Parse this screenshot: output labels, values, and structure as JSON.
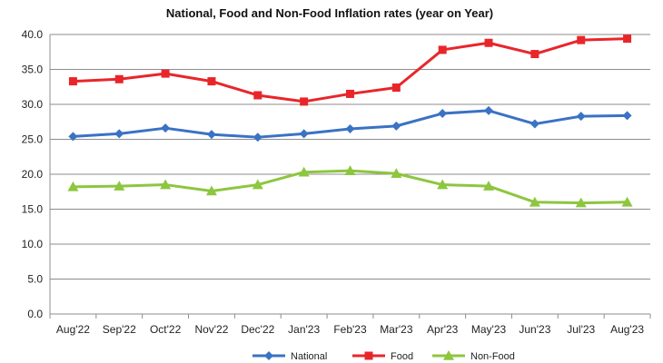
{
  "chart_data": {
    "type": "line",
    "title": "National, Food and Non-Food Inflation rates (year on Year)",
    "xlabel": "",
    "ylabel": "",
    "categories": [
      "Aug'22",
      "Sep'22",
      "Oct'22",
      "Nov'22",
      "Dec'22",
      "Jan'23",
      "Feb'23",
      "Mar'23",
      "Apr'23",
      "May'23",
      "Jun'23",
      "Jul'23",
      "Aug'23"
    ],
    "ylim": [
      0,
      40
    ],
    "yticks": [
      "0.0",
      "5.0",
      "10.0",
      "15.0",
      "20.0",
      "25.0",
      "30.0",
      "35.0",
      "40.0"
    ],
    "grid": "horizontal",
    "legend_position": "bottom",
    "series": [
      {
        "name": "National",
        "color": "#3A72C4",
        "marker": "diamond",
        "values": [
          25.4,
          25.8,
          26.6,
          25.7,
          25.3,
          25.8,
          26.5,
          26.9,
          28.7,
          29.1,
          27.2,
          28.3,
          28.4
        ]
      },
      {
        "name": "Food",
        "color": "#E8262A",
        "marker": "square",
        "values": [
          33.3,
          33.6,
          34.4,
          33.3,
          31.3,
          30.4,
          31.5,
          32.4,
          37.8,
          38.8,
          37.2,
          39.2,
          39.4
        ]
      },
      {
        "name": "Non-Food",
        "color": "#8DC63F",
        "marker": "triangle",
        "values": [
          18.2,
          18.3,
          18.5,
          17.6,
          18.5,
          20.3,
          20.5,
          20.1,
          18.5,
          18.3,
          16.0,
          15.9,
          16.0
        ]
      }
    ]
  }
}
